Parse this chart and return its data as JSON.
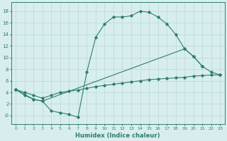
{
  "line1_x": [
    0,
    1,
    2,
    3,
    4,
    5,
    6,
    7,
    8,
    9,
    10,
    11,
    12,
    13,
    14,
    15,
    16,
    17,
    18,
    19,
    20,
    21
  ],
  "line1_y": [
    4.5,
    3.5,
    2.8,
    2.5,
    0.8,
    0.5,
    0.2,
    -0.3,
    7.5,
    13.5,
    15.8,
    17.0,
    17.0,
    17.2,
    18.0,
    17.8,
    17.0,
    15.8,
    14.0,
    11.5,
    10.2,
    8.5
  ],
  "line2_x": [
    0,
    1,
    2,
    3,
    4,
    5,
    6,
    7,
    8,
    9,
    10,
    11,
    12,
    13,
    14,
    15,
    16,
    17,
    18,
    19,
    20,
    21,
    22,
    23
  ],
  "line2_y": [
    4.5,
    4.0,
    3.5,
    3.0,
    3.5,
    4.0,
    4.2,
    4.4,
    4.7,
    5.0,
    5.2,
    5.4,
    5.6,
    5.8,
    6.0,
    6.2,
    6.3,
    6.4,
    6.5,
    6.6,
    6.8,
    6.9,
    7.0,
    7.0
  ],
  "line3_x": [
    0,
    2,
    3,
    19,
    20,
    21,
    22,
    23
  ],
  "line3_y": [
    4.5,
    2.8,
    2.5,
    11.5,
    10.2,
    8.5,
    7.5,
    7.0
  ],
  "color": "#2e7d6e",
  "bg_color": "#d8eeee",
  "grid_color": "#b8d8d8",
  "xlabel": "Humidex (Indice chaleur)",
  "ylim": [
    -1.5,
    19.5
  ],
  "xlim": [
    -0.5,
    23.5
  ],
  "yticks": [
    0,
    2,
    4,
    6,
    8,
    10,
    12,
    14,
    16,
    18
  ],
  "ytick_labels": [
    "-0",
    "2",
    "4",
    "6",
    "8",
    "10",
    "12",
    "14",
    "16",
    "18"
  ]
}
